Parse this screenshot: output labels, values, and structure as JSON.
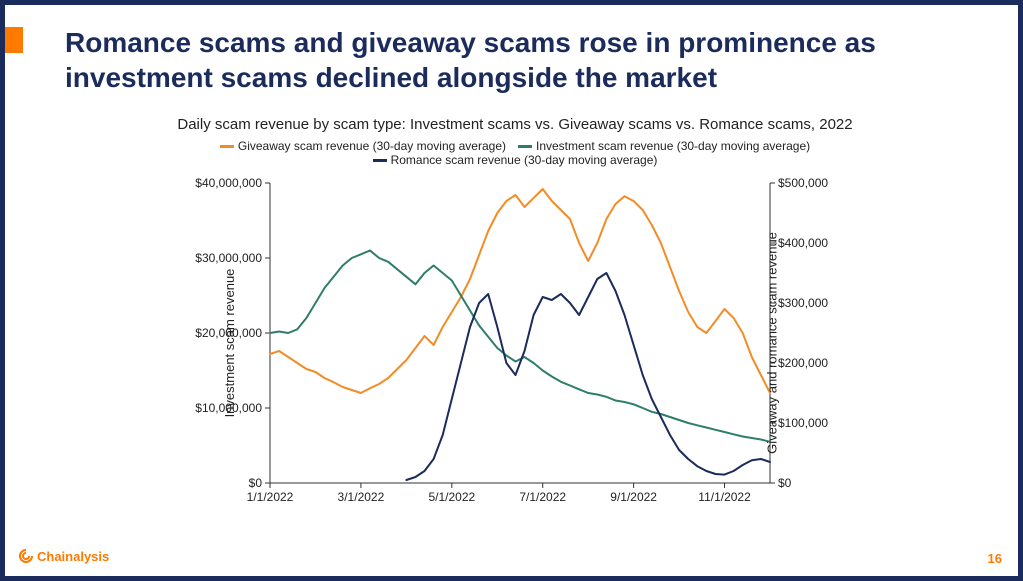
{
  "slide": {
    "border_color": "#1a2b5c",
    "accent_color": "#ff7a00",
    "title": "Romance scams and giveaway scams rose in prominence as investment scams declined alongside the market",
    "page_number": "16",
    "logo_text": "Chainalysis"
  },
  "chart": {
    "type": "line",
    "title": "Daily scam revenue by scam type: Investment scams vs. Giveaway scams vs. Romance scams, 2022",
    "background_color": "#ffffff",
    "axis_color": "#333333",
    "tick_fontsize": 12,
    "title_fontsize": 15,
    "label_fontsize": 13,
    "line_width": 2,
    "x": {
      "domain": [
        0,
        330
      ],
      "ticks": [
        {
          "pos": 0,
          "label": "1/1/2022"
        },
        {
          "pos": 60,
          "label": "3/1/2022"
        },
        {
          "pos": 120,
          "label": "5/1/2022"
        },
        {
          "pos": 180,
          "label": "7/1/2022"
        },
        {
          "pos": 240,
          "label": "9/1/2022"
        },
        {
          "pos": 300,
          "label": "11/1/2022"
        }
      ]
    },
    "y_left": {
      "label": "Investment scam revenue",
      "domain": [
        0,
        40000000
      ],
      "ticks": [
        {
          "val": 0,
          "label": "$0"
        },
        {
          "val": 10000000,
          "label": "$10,000,000"
        },
        {
          "val": 20000000,
          "label": "$20,000,000"
        },
        {
          "val": 30000000,
          "label": "$30,000,000"
        },
        {
          "val": 40000000,
          "label": "$40,000,000"
        }
      ]
    },
    "y_right": {
      "label": "Giveaway and romance scam revenue",
      "domain": [
        0,
        500000
      ],
      "ticks": [
        {
          "val": 0,
          "label": "$0"
        },
        {
          "val": 100000,
          "label": "$100,000"
        },
        {
          "val": 200000,
          "label": "$200,000"
        },
        {
          "val": 300000,
          "label": "$300,000"
        },
        {
          "val": 400000,
          "label": "$400,000"
        },
        {
          "val": 500000,
          "label": "$500,000"
        }
      ]
    },
    "series": [
      {
        "name": "Giveaway scam revenue (30-day moving average)",
        "color": "#f28c28",
        "axis": "right",
        "data": [
          [
            0,
            215000
          ],
          [
            6,
            220000
          ],
          [
            12,
            210000
          ],
          [
            18,
            200000
          ],
          [
            24,
            190000
          ],
          [
            30,
            185000
          ],
          [
            36,
            175000
          ],
          [
            42,
            168000
          ],
          [
            48,
            160000
          ],
          [
            54,
            155000
          ],
          [
            60,
            150000
          ],
          [
            66,
            158000
          ],
          [
            72,
            165000
          ],
          [
            78,
            175000
          ],
          [
            84,
            190000
          ],
          [
            90,
            205000
          ],
          [
            96,
            225000
          ],
          [
            102,
            245000
          ],
          [
            108,
            230000
          ],
          [
            114,
            260000
          ],
          [
            120,
            285000
          ],
          [
            126,
            310000
          ],
          [
            132,
            340000
          ],
          [
            138,
            380000
          ],
          [
            144,
            420000
          ],
          [
            150,
            450000
          ],
          [
            156,
            470000
          ],
          [
            162,
            480000
          ],
          [
            168,
            460000
          ],
          [
            174,
            475000
          ],
          [
            180,
            490000
          ],
          [
            186,
            470000
          ],
          [
            192,
            455000
          ],
          [
            198,
            440000
          ],
          [
            204,
            400000
          ],
          [
            210,
            370000
          ],
          [
            216,
            400000
          ],
          [
            222,
            440000
          ],
          [
            228,
            465000
          ],
          [
            234,
            478000
          ],
          [
            240,
            470000
          ],
          [
            246,
            455000
          ],
          [
            252,
            430000
          ],
          [
            258,
            400000
          ],
          [
            264,
            360000
          ],
          [
            270,
            320000
          ],
          [
            276,
            285000
          ],
          [
            282,
            260000
          ],
          [
            288,
            250000
          ],
          [
            294,
            270000
          ],
          [
            300,
            290000
          ],
          [
            306,
            275000
          ],
          [
            312,
            250000
          ],
          [
            318,
            210000
          ],
          [
            324,
            180000
          ],
          [
            330,
            150000
          ]
        ]
      },
      {
        "name": "Investment scam revenue (30-day moving average)",
        "color": "#2e7d6b",
        "axis": "left",
        "data": [
          [
            0,
            20000000
          ],
          [
            6,
            20200000
          ],
          [
            12,
            20000000
          ],
          [
            18,
            20500000
          ],
          [
            24,
            22000000
          ],
          [
            30,
            24000000
          ],
          [
            36,
            26000000
          ],
          [
            42,
            27500000
          ],
          [
            48,
            29000000
          ],
          [
            54,
            30000000
          ],
          [
            60,
            30500000
          ],
          [
            66,
            31000000
          ],
          [
            72,
            30000000
          ],
          [
            78,
            29500000
          ],
          [
            84,
            28500000
          ],
          [
            90,
            27500000
          ],
          [
            96,
            26500000
          ],
          [
            102,
            28000000
          ],
          [
            108,
            29000000
          ],
          [
            114,
            28000000
          ],
          [
            120,
            27000000
          ],
          [
            126,
            25000000
          ],
          [
            132,
            23000000
          ],
          [
            138,
            21000000
          ],
          [
            144,
            19500000
          ],
          [
            150,
            18000000
          ],
          [
            156,
            17000000
          ],
          [
            162,
            16200000
          ],
          [
            168,
            16800000
          ],
          [
            174,
            16000000
          ],
          [
            180,
            15000000
          ],
          [
            186,
            14200000
          ],
          [
            192,
            13500000
          ],
          [
            198,
            13000000
          ],
          [
            204,
            12500000
          ],
          [
            210,
            12000000
          ],
          [
            216,
            11800000
          ],
          [
            222,
            11500000
          ],
          [
            228,
            11000000
          ],
          [
            234,
            10800000
          ],
          [
            240,
            10500000
          ],
          [
            246,
            10000000
          ],
          [
            252,
            9500000
          ],
          [
            258,
            9200000
          ],
          [
            264,
            8800000
          ],
          [
            270,
            8400000
          ],
          [
            276,
            8000000
          ],
          [
            282,
            7700000
          ],
          [
            288,
            7400000
          ],
          [
            294,
            7100000
          ],
          [
            300,
            6800000
          ],
          [
            306,
            6500000
          ],
          [
            312,
            6200000
          ],
          [
            318,
            6000000
          ],
          [
            324,
            5800000
          ],
          [
            330,
            5500000
          ]
        ]
      },
      {
        "name": "Romance scam revenue (30-day moving average)",
        "color": "#1a2b5c",
        "axis": "right",
        "data": [
          [
            90,
            5000
          ],
          [
            96,
            10000
          ],
          [
            102,
            20000
          ],
          [
            108,
            40000
          ],
          [
            114,
            80000
          ],
          [
            120,
            140000
          ],
          [
            126,
            200000
          ],
          [
            132,
            260000
          ],
          [
            138,
            300000
          ],
          [
            144,
            315000
          ],
          [
            150,
            260000
          ],
          [
            156,
            200000
          ],
          [
            162,
            180000
          ],
          [
            168,
            220000
          ],
          [
            174,
            280000
          ],
          [
            180,
            310000
          ],
          [
            186,
            305000
          ],
          [
            192,
            315000
          ],
          [
            198,
            300000
          ],
          [
            204,
            280000
          ],
          [
            210,
            310000
          ],
          [
            216,
            340000
          ],
          [
            222,
            350000
          ],
          [
            228,
            320000
          ],
          [
            234,
            280000
          ],
          [
            240,
            230000
          ],
          [
            246,
            180000
          ],
          [
            252,
            140000
          ],
          [
            258,
            110000
          ],
          [
            264,
            80000
          ],
          [
            270,
            55000
          ],
          [
            276,
            40000
          ],
          [
            282,
            28000
          ],
          [
            288,
            20000
          ],
          [
            294,
            15000
          ],
          [
            300,
            14000
          ],
          [
            306,
            20000
          ],
          [
            312,
            30000
          ],
          [
            318,
            38000
          ],
          [
            324,
            40000
          ],
          [
            330,
            35000
          ]
        ]
      }
    ]
  }
}
